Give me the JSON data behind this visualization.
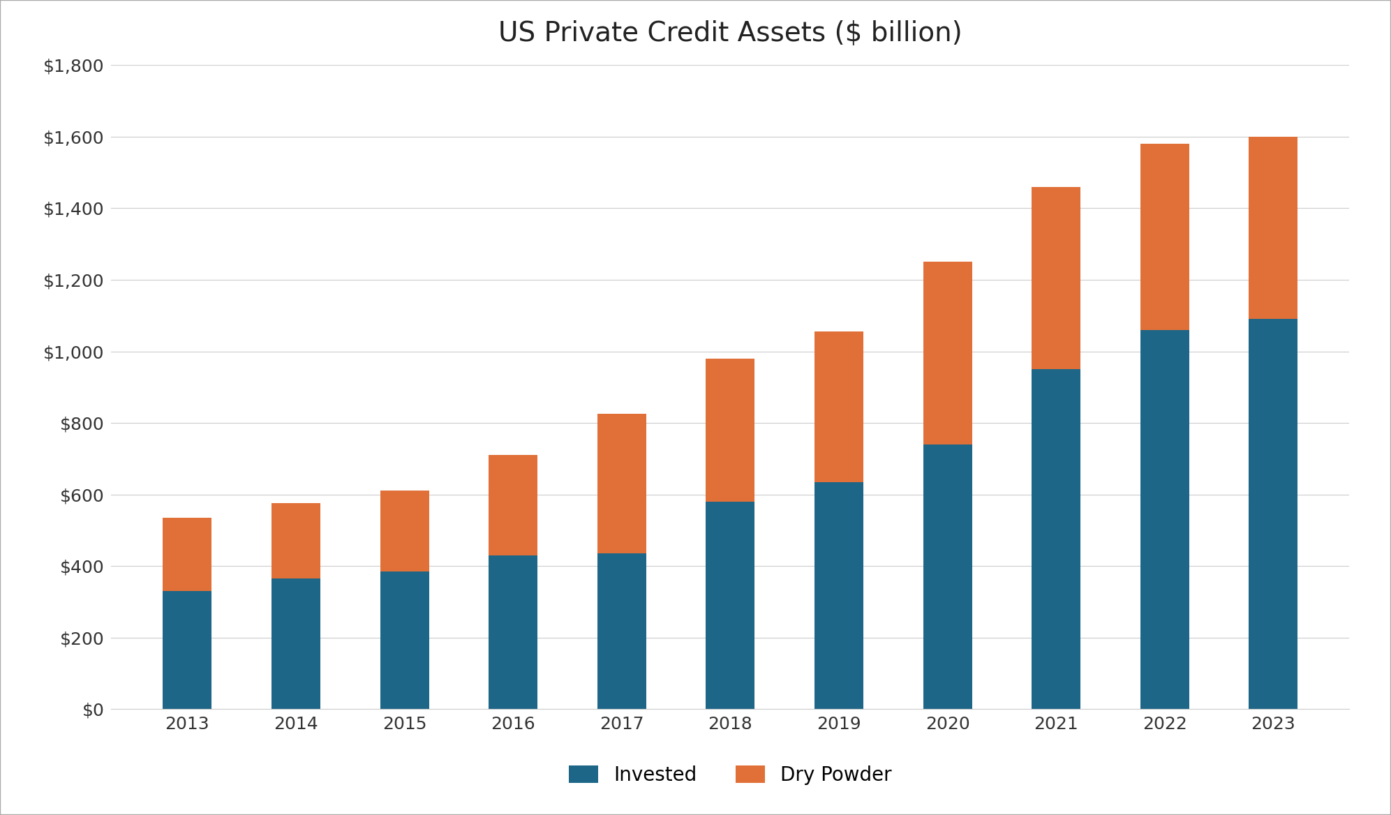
{
  "title": "US Private Credit Assets ($ billion)",
  "years": [
    2013,
    2014,
    2015,
    2016,
    2017,
    2018,
    2019,
    2020,
    2021,
    2022,
    2023
  ],
  "invested": [
    330,
    365,
    385,
    430,
    435,
    580,
    635,
    740,
    950,
    1060,
    1090
  ],
  "dry_powder": [
    205,
    210,
    225,
    280,
    390,
    400,
    420,
    510,
    510,
    520,
    510
  ],
  "invested_color": "#1d6687",
  "dry_powder_color": "#e07038",
  "background_color": "#ffffff",
  "title_fontsize": 28,
  "tick_fontsize": 18,
  "legend_fontsize": 20,
  "ylim": [
    0,
    1800
  ],
  "ytick_step": 200,
  "legend_labels": [
    "Invested",
    "Dry Powder"
  ],
  "grid_color": "#cccccc",
  "bar_width": 0.45,
  "outer_border_color": "#aaaaaa",
  "outer_border_linewidth": 1.5
}
